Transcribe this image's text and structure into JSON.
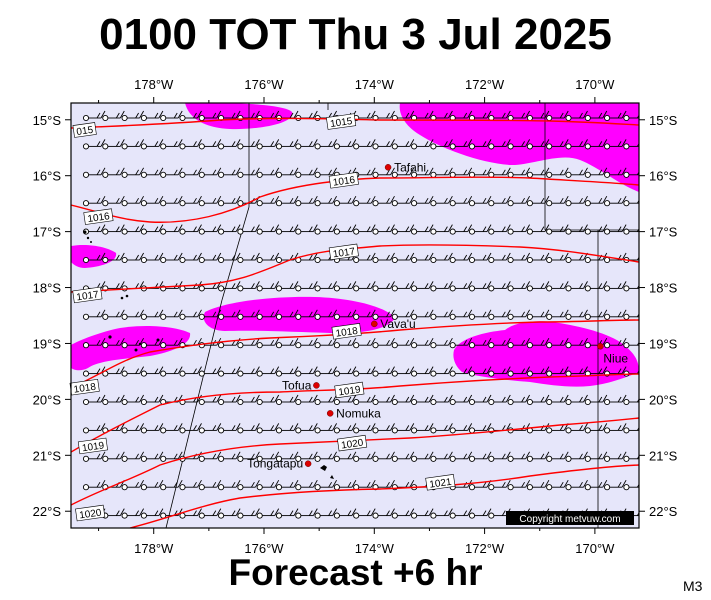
{
  "title": "0100 TOT Thu 3 Jul 2025",
  "footer": "Forecast +6 hr",
  "code": "M3",
  "copyright": "Copyright metvuw.com",
  "colors": {
    "sea": "#e6e6fa",
    "rain": "#ff00ff",
    "isobar": "#ff0000",
    "place_dot": "#dd0000"
  },
  "map": {
    "lon_range_west": [
      179.5,
      169.2
    ],
    "lat_range_south": [
      14.7,
      22.3
    ],
    "lon_ticks": [
      {
        "value": 178,
        "label": "178°W"
      },
      {
        "value": 176,
        "label": "176°W"
      },
      {
        "value": 174,
        "label": "174°W"
      },
      {
        "value": 172,
        "label": "172°W"
      },
      {
        "value": 170,
        "label": "170°W"
      }
    ],
    "lat_ticks": [
      {
        "value": 15,
        "label": "15°S"
      },
      {
        "value": 16,
        "label": "16°S"
      },
      {
        "value": 17,
        "label": "17°S"
      },
      {
        "value": 18,
        "label": "18°S"
      },
      {
        "value": 19,
        "label": "19°S"
      },
      {
        "value": 20,
        "label": "20°S"
      },
      {
        "value": 21,
        "label": "21°S"
      },
      {
        "value": 22,
        "label": "22°S"
      }
    ],
    "places": [
      {
        "name": "Tafahi",
        "lon": 173.75,
        "lat": 15.85
      },
      {
        "name": "Vava'u",
        "lon": 174.0,
        "lat": 18.65
      },
      {
        "name": "Niue",
        "lon": 169.9,
        "lat": 19.05
      },
      {
        "name": "Tofua",
        "lon": 175.05,
        "lat": 19.75
      },
      {
        "name": "Nomuka",
        "lon": 174.8,
        "lat": 20.25
      },
      {
        "name": "Tongatapu",
        "lon": 175.2,
        "lat": 21.15
      }
    ],
    "isobars": [
      {
        "label": "1015",
        "label_lon": 174.6,
        "label_lat": 15.05
      },
      {
        "label": "015",
        "label_lon": 179.25,
        "label_lat": 15.2
      },
      {
        "label": "1016",
        "label_lon": 174.55,
        "label_lat": 16.1
      },
      {
        "label": "1016",
        "label_lon": 179.0,
        "label_lat": 16.75
      },
      {
        "label": "1017",
        "label_lon": 174.55,
        "label_lat": 17.38
      },
      {
        "label": "1017",
        "label_lon": 179.2,
        "label_lat": 18.15
      },
      {
        "label": "1018",
        "label_lon": 174.5,
        "label_lat": 18.8
      },
      {
        "label": "1018",
        "label_lon": 179.25,
        "label_lat": 19.8
      },
      {
        "label": "1019",
        "label_lon": 174.45,
        "label_lat": 19.85
      },
      {
        "label": "1019",
        "label_lon": 179.1,
        "label_lat": 20.85
      },
      {
        "label": "1020",
        "label_lon": 174.4,
        "label_lat": 20.8
      },
      {
        "label": "1021",
        "label_lon": 172.8,
        "label_lat": 21.5
      },
      {
        "label": "1020",
        "label_lon": 179.15,
        "label_lat": 22.05
      }
    ]
  }
}
